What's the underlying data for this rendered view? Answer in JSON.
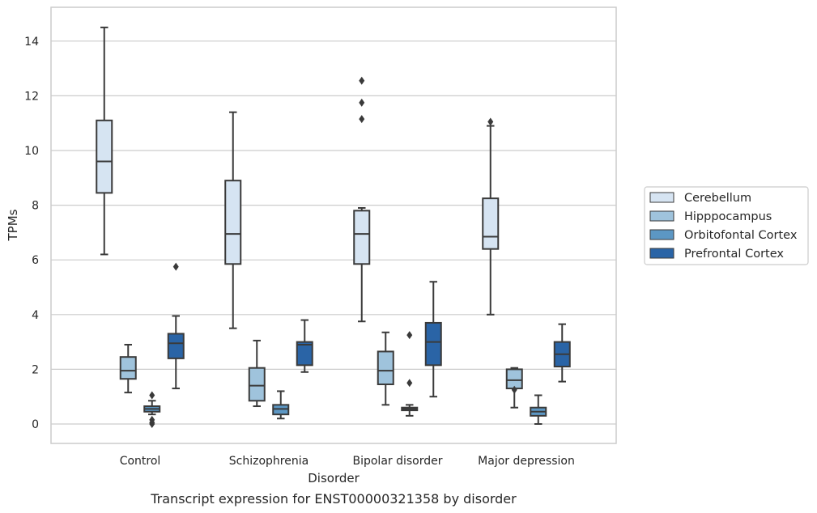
{
  "chart_data": {
    "type": "box",
    "xlabel": "Disorder",
    "ylabel": "TPMs",
    "caption": "Transcript expression for ENST00000321358 by disorder",
    "ylim": [
      -0.7,
      15.3
    ],
    "yticks": [
      0,
      2,
      4,
      6,
      8,
      10,
      12,
      14
    ],
    "grid": "horizontal",
    "legend_position": "right",
    "categories": [
      "Control",
      "Schizophrenia",
      "Bipolar disorder",
      "Major depression"
    ],
    "series": [
      {
        "name": "Cerebellum",
        "color": "#d6e4f2",
        "boxes": [
          {
            "min": 6.2,
            "q1": 8.45,
            "median": 9.6,
            "q3": 11.1,
            "max": 14.5,
            "outliers": []
          },
          {
            "min": 3.5,
            "q1": 5.85,
            "median": 6.95,
            "q3": 8.9,
            "max": 11.4,
            "outliers": []
          },
          {
            "min": 3.75,
            "q1": 5.85,
            "median": 6.95,
            "q3": 7.8,
            "max": 7.9,
            "outliers": [
              11.15,
              11.75,
              12.55
            ]
          },
          {
            "min": 4.0,
            "q1": 6.4,
            "median": 6.85,
            "q3": 8.25,
            "max": 10.9,
            "outliers": [
              11.05
            ]
          }
        ]
      },
      {
        "name": "Hipppocampus",
        "color": "#9fc3dc",
        "boxes": [
          {
            "min": 1.15,
            "q1": 1.65,
            "median": 1.95,
            "q3": 2.45,
            "max": 2.9,
            "outliers": []
          },
          {
            "min": 0.65,
            "q1": 0.85,
            "median": 1.4,
            "q3": 2.05,
            "max": 3.05,
            "outliers": []
          },
          {
            "min": 0.7,
            "q1": 1.45,
            "median": 1.95,
            "q3": 2.65,
            "max": 3.35,
            "outliers": []
          },
          {
            "min": 0.6,
            "q1": 1.3,
            "median": 1.6,
            "q3": 2.0,
            "max": 2.05,
            "outliers": [
              1.25
            ]
          }
        ]
      },
      {
        "name": "Orbitofontal Cortex",
        "color": "#5c97c4",
        "boxes": [
          {
            "min": 0.35,
            "q1": 0.45,
            "median": 0.55,
            "q3": 0.65,
            "max": 0.85,
            "outliers": [
              1.05,
              0.15,
              0.05,
              0.0
            ]
          },
          {
            "min": 0.2,
            "q1": 0.35,
            "median": 0.55,
            "q3": 0.7,
            "max": 1.2,
            "outliers": []
          },
          {
            "min": 0.3,
            "q1": 0.5,
            "median": 0.55,
            "q3": 0.6,
            "max": 0.7,
            "outliers": [
              1.5,
              3.25
            ]
          },
          {
            "min": 0.0,
            "q1": 0.3,
            "median": 0.45,
            "q3": 0.6,
            "max": 1.05,
            "outliers": []
          }
        ]
      },
      {
        "name": "Prefrontal Cortex",
        "color": "#2a64a6",
        "boxes": [
          {
            "min": 1.3,
            "q1": 2.4,
            "median": 2.95,
            "q3": 3.3,
            "max": 3.95,
            "outliers": [
              5.75
            ]
          },
          {
            "min": 1.9,
            "q1": 2.15,
            "median": 2.9,
            "q3": 3.0,
            "max": 3.8,
            "outliers": []
          },
          {
            "min": 1.0,
            "q1": 2.15,
            "median": 3.0,
            "q3": 3.7,
            "max": 5.2,
            "outliers": []
          },
          {
            "min": 1.55,
            "q1": 2.1,
            "median": 2.55,
            "q3": 3.0,
            "max": 3.65,
            "outliers": []
          }
        ]
      }
    ]
  }
}
